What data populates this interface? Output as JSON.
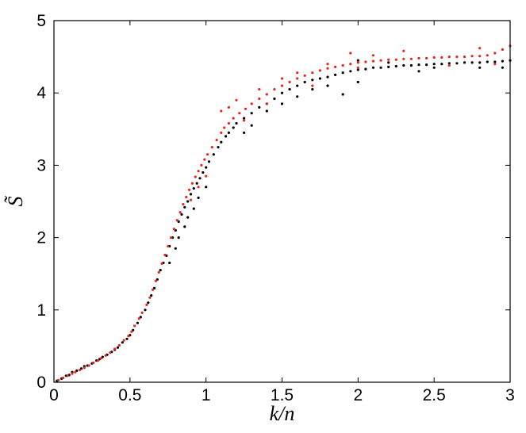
{
  "chart_data": {
    "type": "scatter",
    "title": "",
    "xlabel": "k/n",
    "ylabel": "S̃",
    "xlim": [
      0,
      3
    ],
    "ylim": [
      0,
      5
    ],
    "xticks": [
      "0",
      "0.5",
      "1",
      "1.5",
      "2",
      "2.5",
      "3"
    ],
    "yticks": [
      "0",
      "1",
      "2",
      "3",
      "4",
      "5"
    ],
    "grid": false,
    "legend": "none",
    "series": [
      {
        "color": "#000000",
        "points": [
          [
            0.02,
            0.02
          ],
          [
            0.05,
            0.05
          ],
          [
            0.08,
            0.09
          ],
          [
            0.1,
            0.1
          ],
          [
            0.12,
            0.14
          ],
          [
            0.15,
            0.16
          ],
          [
            0.18,
            0.19
          ],
          [
            0.2,
            0.22
          ],
          [
            0.22,
            0.23
          ],
          [
            0.25,
            0.26
          ],
          [
            0.28,
            0.3
          ],
          [
            0.3,
            0.32
          ],
          [
            0.32,
            0.35
          ],
          [
            0.35,
            0.38
          ],
          [
            0.38,
            0.42
          ],
          [
            0.4,
            0.45
          ],
          [
            0.42,
            0.48
          ],
          [
            0.45,
            0.55
          ],
          [
            0.48,
            0.6
          ],
          [
            0.5,
            0.65
          ],
          [
            0.52,
            0.72
          ],
          [
            0.55,
            0.82
          ],
          [
            0.57,
            0.9
          ],
          [
            0.6,
            1.0
          ],
          [
            0.62,
            1.1
          ],
          [
            0.64,
            1.2
          ],
          [
            0.66,
            1.3
          ],
          [
            0.68,
            1.42
          ],
          [
            0.7,
            1.55
          ],
          [
            0.72,
            1.65
          ],
          [
            0.74,
            1.75
          ],
          [
            0.76,
            1.88
          ],
          [
            0.78,
            2.0
          ],
          [
            0.8,
            2.1
          ],
          [
            0.82,
            2.22
          ],
          [
            0.84,
            2.32
          ],
          [
            0.86,
            2.42
          ],
          [
            0.88,
            2.5
          ],
          [
            0.9,
            2.6
          ],
          [
            0.92,
            2.68
          ],
          [
            0.94,
            2.75
          ],
          [
            0.96,
            2.82
          ],
          [
            0.98,
            2.9
          ],
          [
            1.0,
            2.97
          ],
          [
            1.02,
            3.05
          ],
          [
            1.05,
            3.15
          ],
          [
            1.08,
            3.25
          ],
          [
            1.1,
            3.32
          ],
          [
            1.13,
            3.4
          ],
          [
            1.15,
            3.45
          ],
          [
            1.18,
            3.52
          ],
          [
            1.2,
            3.58
          ],
          [
            1.25,
            3.65
          ],
          [
            1.3,
            3.72
          ],
          [
            1.35,
            3.8
          ],
          [
            1.4,
            3.85
          ],
          [
            1.45,
            3.92
          ],
          [
            1.5,
            4.0
          ],
          [
            1.55,
            4.05
          ],
          [
            1.6,
            4.1
          ],
          [
            1.65,
            4.15
          ],
          [
            1.7,
            4.18
          ],
          [
            1.75,
            4.2
          ],
          [
            1.8,
            4.22
          ],
          [
            1.85,
            4.25
          ],
          [
            1.9,
            4.28
          ],
          [
            1.95,
            4.3
          ],
          [
            2.0,
            4.32
          ],
          [
            2.05,
            4.33
          ],
          [
            2.1,
            4.35
          ],
          [
            2.15,
            4.35
          ],
          [
            2.2,
            4.36
          ],
          [
            2.25,
            4.37
          ],
          [
            2.3,
            4.38
          ],
          [
            2.35,
            4.38
          ],
          [
            2.4,
            4.39
          ],
          [
            2.45,
            4.39
          ],
          [
            2.5,
            4.4
          ],
          [
            2.55,
            4.4
          ],
          [
            2.6,
            4.41
          ],
          [
            2.65,
            4.41
          ],
          [
            2.7,
            4.42
          ],
          [
            2.75,
            4.42
          ],
          [
            2.8,
            4.42
          ],
          [
            2.85,
            4.43
          ],
          [
            2.9,
            4.43
          ],
          [
            2.95,
            4.44
          ],
          [
            3.0,
            4.45
          ],
          [
            0.76,
            1.65
          ],
          [
            0.82,
            2.0
          ],
          [
            0.88,
            2.28
          ],
          [
            0.95,
            2.55
          ],
          [
            1.0,
            2.7
          ],
          [
            0.8,
            1.85
          ],
          [
            0.86,
            2.15
          ],
          [
            0.92,
            2.4
          ],
          [
            1.25,
            3.45
          ],
          [
            1.3,
            3.55
          ],
          [
            1.4,
            3.75
          ],
          [
            1.5,
            3.85
          ],
          [
            1.6,
            3.95
          ],
          [
            1.7,
            4.05
          ],
          [
            1.9,
            3.98
          ],
          [
            2.0,
            4.15
          ],
          [
            2.0,
            4.45
          ],
          [
            2.4,
            4.3
          ],
          [
            2.8,
            4.35
          ],
          [
            2.95,
            4.35
          ],
          [
            2.5,
            4.35
          ],
          [
            2.2,
            4.42
          ],
          [
            1.8,
            4.1
          ]
        ]
      },
      {
        "color": "#e8281e",
        "points": [
          [
            0.03,
            0.03
          ],
          [
            0.06,
            0.06
          ],
          [
            0.09,
            0.09
          ],
          [
            0.12,
            0.12
          ],
          [
            0.14,
            0.14
          ],
          [
            0.17,
            0.17
          ],
          [
            0.2,
            0.2
          ],
          [
            0.23,
            0.23
          ],
          [
            0.26,
            0.27
          ],
          [
            0.29,
            0.3
          ],
          [
            0.31,
            0.33
          ],
          [
            0.34,
            0.37
          ],
          [
            0.37,
            0.41
          ],
          [
            0.4,
            0.46
          ],
          [
            0.43,
            0.51
          ],
          [
            0.46,
            0.58
          ],
          [
            0.49,
            0.64
          ],
          [
            0.51,
            0.7
          ],
          [
            0.53,
            0.78
          ],
          [
            0.56,
            0.88
          ],
          [
            0.58,
            0.96
          ],
          [
            0.61,
            1.07
          ],
          [
            0.63,
            1.17
          ],
          [
            0.65,
            1.28
          ],
          [
            0.67,
            1.4
          ],
          [
            0.69,
            1.52
          ],
          [
            0.71,
            1.64
          ],
          [
            0.73,
            1.76
          ],
          [
            0.75,
            1.88
          ],
          [
            0.77,
            2.0
          ],
          [
            0.79,
            2.12
          ],
          [
            0.81,
            2.24
          ],
          [
            0.83,
            2.35
          ],
          [
            0.85,
            2.46
          ],
          [
            0.87,
            2.56
          ],
          [
            0.89,
            2.66
          ],
          [
            0.91,
            2.75
          ],
          [
            0.93,
            2.84
          ],
          [
            0.95,
            2.92
          ],
          [
            0.97,
            3.0
          ],
          [
            0.99,
            3.08
          ],
          [
            1.01,
            3.15
          ],
          [
            1.04,
            3.25
          ],
          [
            1.07,
            3.35
          ],
          [
            1.1,
            3.45
          ],
          [
            1.12,
            3.52
          ],
          [
            1.15,
            3.58
          ],
          [
            1.18,
            3.65
          ],
          [
            1.22,
            3.72
          ],
          [
            1.26,
            3.78
          ],
          [
            1.3,
            3.85
          ],
          [
            1.35,
            3.92
          ],
          [
            1.4,
            3.98
          ],
          [
            1.45,
            4.05
          ],
          [
            1.5,
            4.1
          ],
          [
            1.55,
            4.15
          ],
          [
            1.6,
            4.2
          ],
          [
            1.65,
            4.24
          ],
          [
            1.7,
            4.28
          ],
          [
            1.75,
            4.31
          ],
          [
            1.8,
            4.34
          ],
          [
            1.85,
            4.36
          ],
          [
            1.9,
            4.38
          ],
          [
            1.95,
            4.4
          ],
          [
            2.0,
            4.42
          ],
          [
            2.05,
            4.43
          ],
          [
            2.1,
            4.44
          ],
          [
            2.15,
            4.45
          ],
          [
            2.2,
            4.46
          ],
          [
            2.25,
            4.46
          ],
          [
            2.3,
            4.47
          ],
          [
            2.35,
            4.47
          ],
          [
            2.4,
            4.48
          ],
          [
            2.45,
            4.48
          ],
          [
            2.5,
            4.49
          ],
          [
            2.55,
            4.49
          ],
          [
            2.6,
            4.5
          ],
          [
            2.65,
            4.5
          ],
          [
            2.7,
            4.5
          ],
          [
            2.75,
            4.51
          ],
          [
            2.8,
            4.51
          ],
          [
            2.85,
            4.52
          ],
          [
            2.9,
            4.55
          ],
          [
            2.95,
            4.6
          ],
          [
            3.0,
            4.65
          ],
          [
            1.1,
            3.75
          ],
          [
            1.15,
            3.8
          ],
          [
            1.2,
            3.9
          ],
          [
            1.35,
            4.05
          ],
          [
            1.5,
            4.2
          ],
          [
            1.6,
            4.28
          ],
          [
            1.8,
            4.4
          ],
          [
            1.95,
            4.55
          ],
          [
            2.1,
            4.52
          ],
          [
            2.3,
            4.58
          ],
          [
            2.6,
            4.38
          ],
          [
            2.8,
            4.62
          ],
          [
            2.9,
            4.4
          ],
          [
            2.0,
            4.35
          ],
          [
            1.7,
            4.1
          ],
          [
            1.4,
            3.85
          ],
          [
            1.25,
            3.62
          ],
          [
            0.9,
            2.52
          ],
          [
            0.95,
            2.7
          ],
          [
            1.0,
            2.85
          ]
        ]
      }
    ]
  }
}
